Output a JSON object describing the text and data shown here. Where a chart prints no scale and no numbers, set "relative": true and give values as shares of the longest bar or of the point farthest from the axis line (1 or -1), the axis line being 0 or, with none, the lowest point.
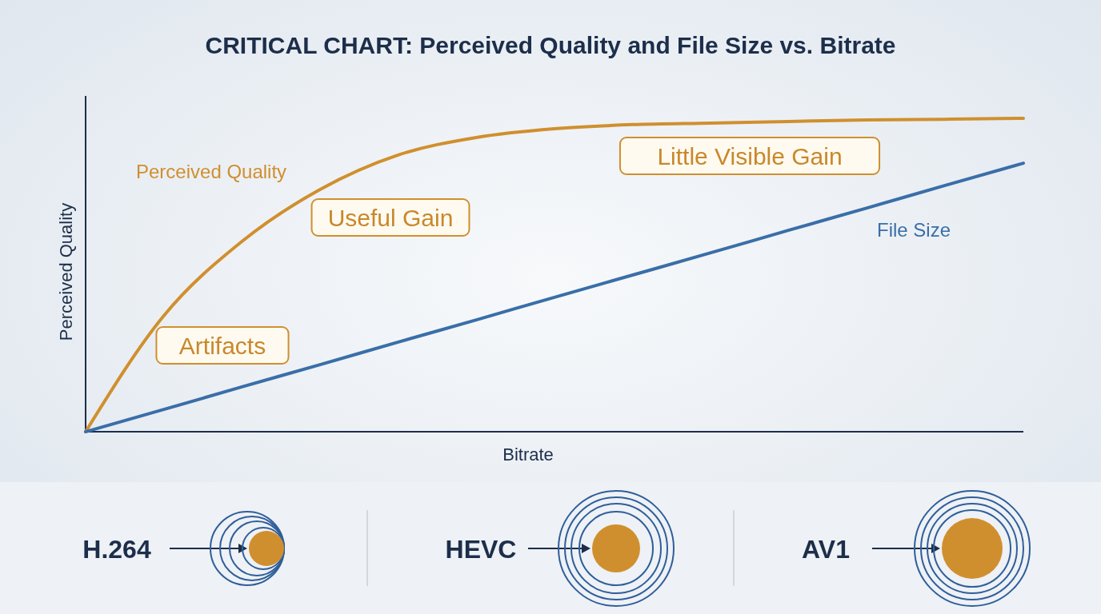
{
  "chart_data": {
    "type": "line",
    "title": "CRITICAL CHART: Perceived Quality and File Size vs. Bitrate",
    "xlabel": "Bitrate",
    "ylabel": "Perceived Quality",
    "relative": true,
    "categories": [
      null,
      null,
      null,
      null,
      null,
      null,
      null,
      null,
      null,
      null,
      null,
      null,
      null
    ],
    "series": [
      {
        "name": "Perceived Quality",
        "color": "#d08f2e",
        "values": [
          0,
          0.37,
          0.607,
          0.773,
          0.883,
          0.939,
          0.967,
          0.98,
          0.985,
          0.99,
          0.995,
          0.997,
          1
        ]
      },
      {
        "name": "File Size",
        "color": "#3a6ea8",
        "values": [
          0,
          0.071,
          0.143,
          0.214,
          0.286,
          0.357,
          0.429,
          0.5,
          0.571,
          0.643,
          0.714,
          0.786,
          0.857
        ]
      }
    ],
    "annotations": [
      "Artifacts",
      "Useful Gain",
      "Little Visible Gain",
      "H.264",
      "HEVC",
      "AV1"
    ]
  }
}
